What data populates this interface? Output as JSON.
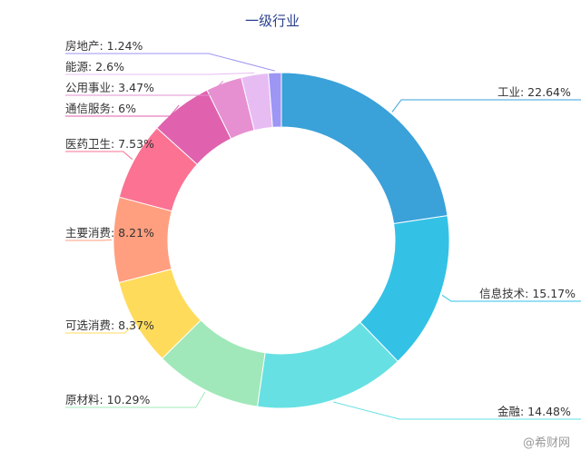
{
  "chart_data": {
    "type": "pie",
    "variant": "donut",
    "title": "一级行业",
    "slices": [
      {
        "name": "工业",
        "value": 22.64,
        "label": "工业: 22.64%",
        "color": "#3aa1d9"
      },
      {
        "name": "信息技术",
        "value": 15.17,
        "label": "信息技术: 15.17%",
        "color": "#33c2e6"
      },
      {
        "name": "金融",
        "value": 14.48,
        "label": "金融: 14.48%",
        "color": "#66e0e3"
      },
      {
        "name": "原材料",
        "value": 10.29,
        "label": "原材料: 10.29%",
        "color": "#a0e8b9"
      },
      {
        "name": "可选消费",
        "value": 8.37,
        "label": "可选消费: 8.37%",
        "color": "#ffdb5c"
      },
      {
        "name": "主要消费",
        "value": 8.21,
        "label": "主要消费: 8.21%",
        "color": "#ff9f7f"
      },
      {
        "name": "医药卫生",
        "value": 7.53,
        "label": "医药卫生: 7.53%",
        "color": "#fb7293"
      },
      {
        "name": "通信服务",
        "value": 6.0,
        "label": "通信服务: 6%",
        "color": "#e062ae"
      },
      {
        "name": "公用事业",
        "value": 3.47,
        "label": "公用事业: 3.47%",
        "color": "#e690d1"
      },
      {
        "name": "能源",
        "value": 2.6,
        "label": "能源: 2.6%",
        "color": "#e7bcf3"
      },
      {
        "name": "房地产",
        "value": 1.24,
        "label": "房地产: 1.24%",
        "color": "#9d96f5"
      }
    ]
  },
  "watermark": "@希财网"
}
